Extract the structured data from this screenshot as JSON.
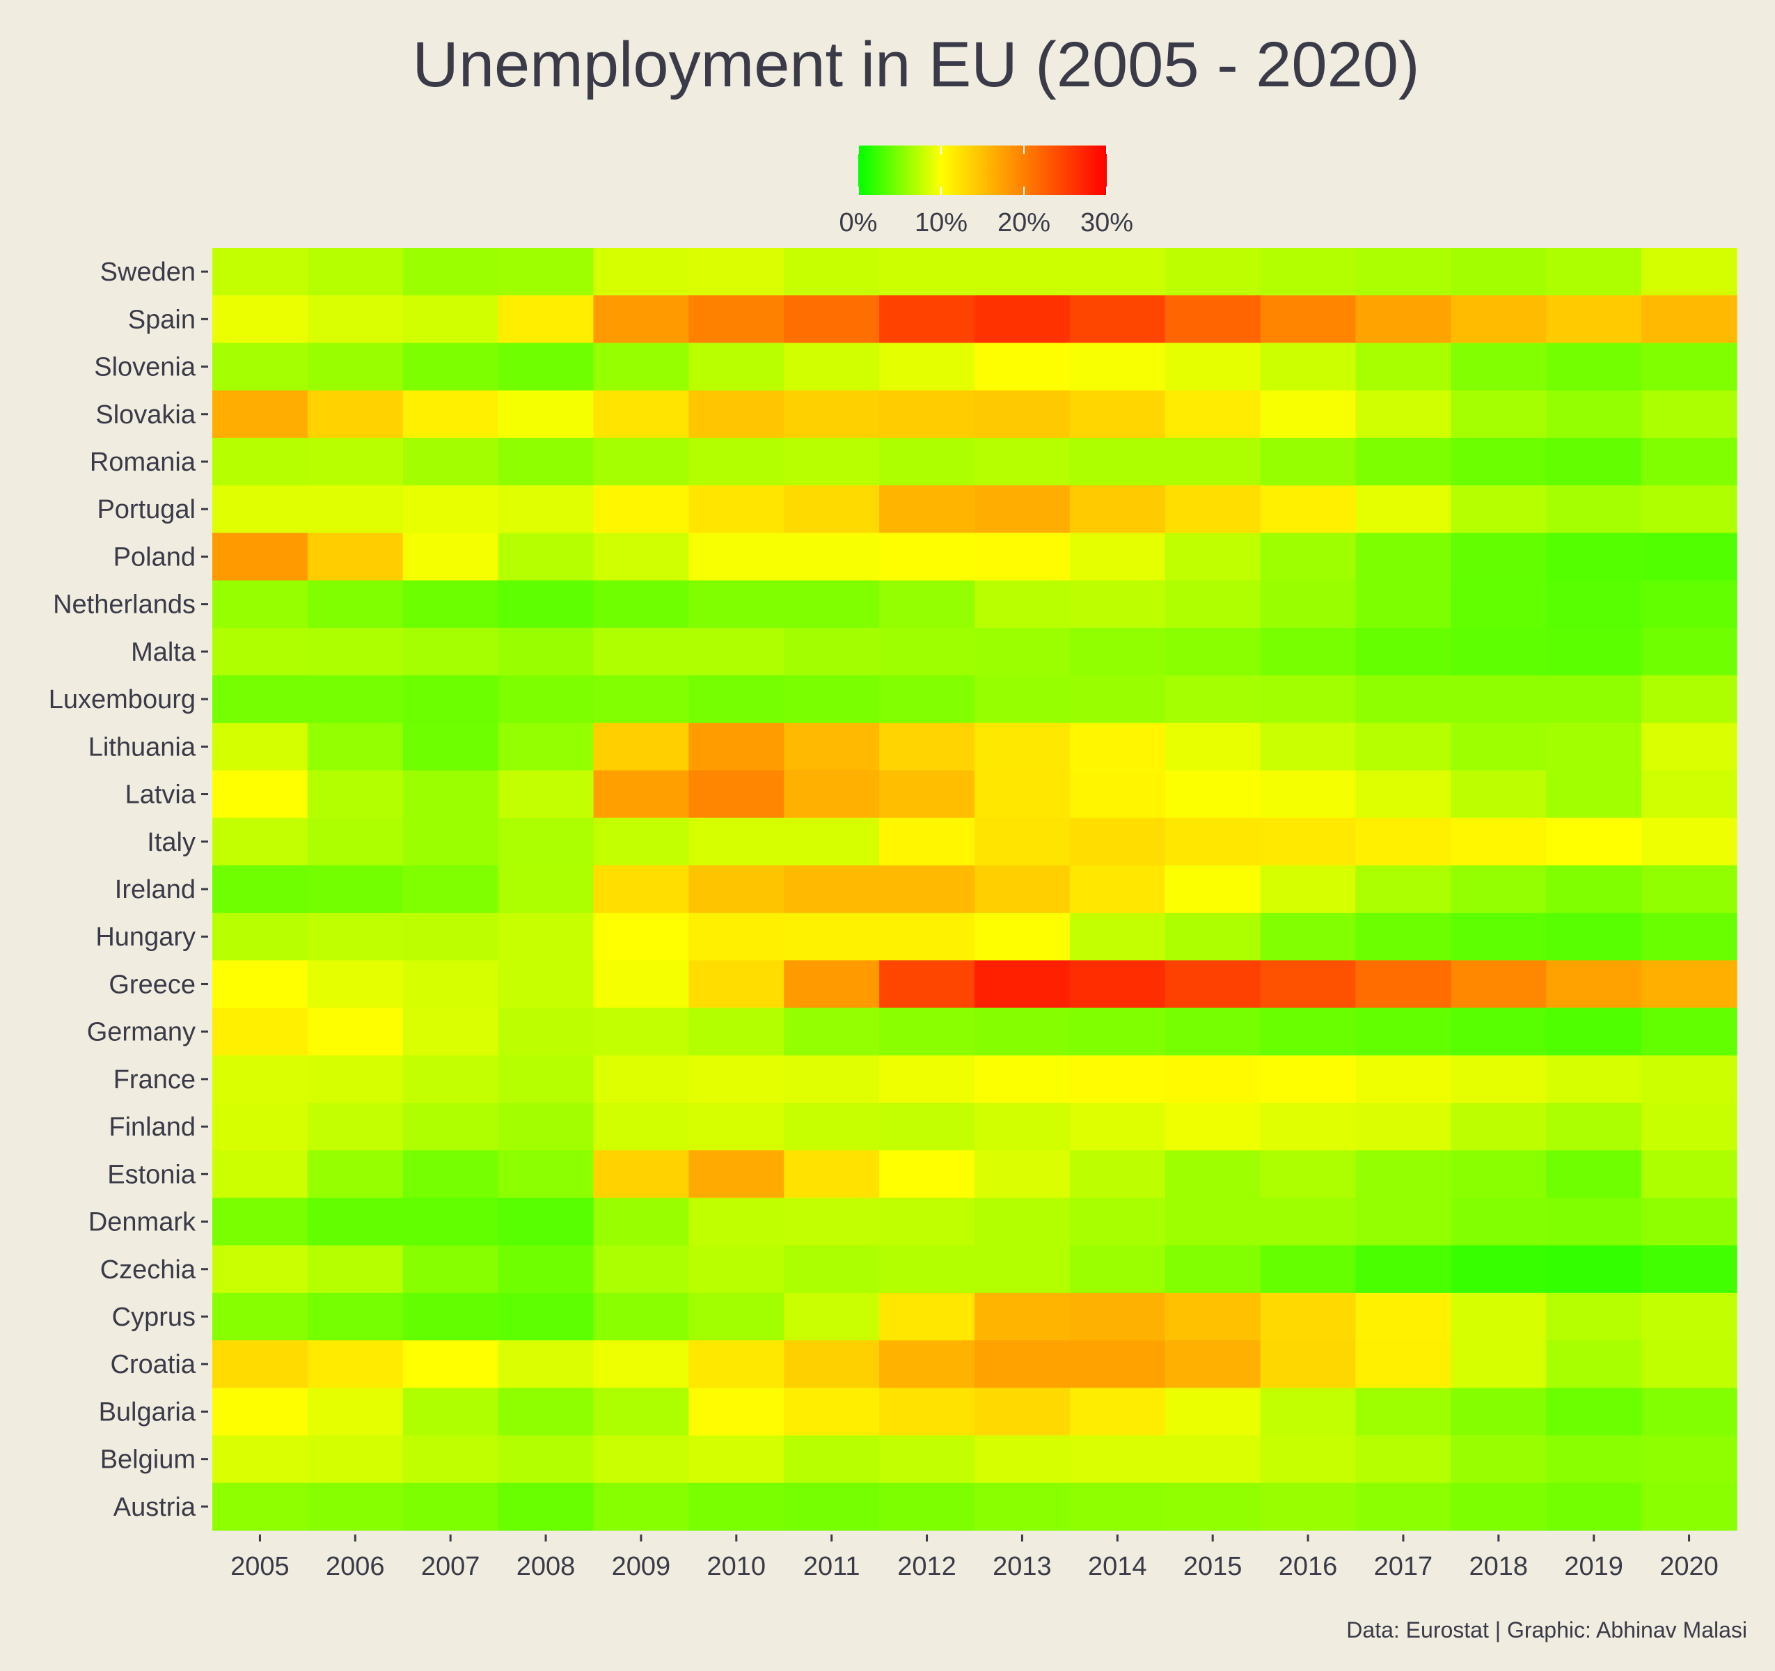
{
  "chart_data": {
    "type": "heatmap",
    "title": "Unemployment in EU (2005 - 2020)",
    "caption": "Data: Eurostat | Graphic: Abhinav Malasi",
    "x": [
      "2005",
      "2006",
      "2007",
      "2008",
      "2009",
      "2010",
      "2011",
      "2012",
      "2013",
      "2014",
      "2015",
      "2016",
      "2017",
      "2018",
      "2019",
      "2020"
    ],
    "y": [
      "Sweden",
      "Spain",
      "Slovenia",
      "Slovakia",
      "Romania",
      "Portugal",
      "Poland",
      "Netherlands",
      "Malta",
      "Luxembourg",
      "Lithuania",
      "Latvia",
      "Italy",
      "Ireland",
      "Hungary",
      "Greece",
      "Germany",
      "France",
      "Finland",
      "Estonia",
      "Denmark",
      "Czechia",
      "Cyprus",
      "Croatia",
      "Bulgaria",
      "Belgium",
      "Austria"
    ],
    "values": [
      [
        7.7,
        7.1,
        6.1,
        6.2,
        8.4,
        8.6,
        7.8,
        8.0,
        8.0,
        8.0,
        7.4,
        7.0,
        6.7,
        6.4,
        6.8,
        8.3
      ],
      [
        9.2,
        8.5,
        8.2,
        11.3,
        17.9,
        19.9,
        21.4,
        24.8,
        26.1,
        24.5,
        22.1,
        19.6,
        17.2,
        15.3,
        14.1,
        15.5
      ],
      [
        6.5,
        6.0,
        4.9,
        4.4,
        5.9,
        7.3,
        8.2,
        8.9,
        10.1,
        9.7,
        9.0,
        8.0,
        6.6,
        5.1,
        4.5,
        5.0
      ],
      [
        16.4,
        13.5,
        11.2,
        9.6,
        12.1,
        14.5,
        13.7,
        14.0,
        14.2,
        13.2,
        11.5,
        9.7,
        8.1,
        6.5,
        5.8,
        6.7
      ],
      [
        7.1,
        7.2,
        6.4,
        5.6,
        6.5,
        7.0,
        7.2,
        6.8,
        7.1,
        6.8,
        6.8,
        5.9,
        4.9,
        4.2,
        3.9,
        5.0
      ],
      [
        8.8,
        8.8,
        9.1,
        8.8,
        10.7,
        12.0,
        12.9,
        15.8,
        16.4,
        14.1,
        12.6,
        11.2,
        9.0,
        7.1,
        6.5,
        6.9
      ],
      [
        17.9,
        13.9,
        9.6,
        7.1,
        8.1,
        9.7,
        9.7,
        10.1,
        10.3,
        9.0,
        7.5,
        6.2,
        4.9,
        3.9,
        3.3,
        3.2
      ],
      [
        5.9,
        5.0,
        4.2,
        3.7,
        4.4,
        5.0,
        5.0,
        5.8,
        7.3,
        7.4,
        6.9,
        6.0,
        4.9,
        3.8,
        3.4,
        3.8
      ],
      [
        6.9,
        6.8,
        6.5,
        6.0,
        6.9,
        6.9,
        6.4,
        6.2,
        6.1,
        5.7,
        5.4,
        4.7,
        4.0,
        3.7,
        3.6,
        4.4
      ],
      [
        4.6,
        4.6,
        4.2,
        4.9,
        5.1,
        4.6,
        4.8,
        5.1,
        5.9,
        6.0,
        6.5,
        6.3,
        5.6,
        5.6,
        5.6,
        6.8
      ],
      [
        8.3,
        5.8,
        4.3,
        5.8,
        13.8,
        17.8,
        15.4,
        13.4,
        11.8,
        10.7,
        9.1,
        7.9,
        7.1,
        6.2,
        6.3,
        8.5
      ],
      [
        10.0,
        7.0,
        6.1,
        7.7,
        17.5,
        19.5,
        16.2,
        15.0,
        11.9,
        10.8,
        9.9,
        9.6,
        8.7,
        7.4,
        6.3,
        8.1
      ],
      [
        7.7,
        6.8,
        6.1,
        6.7,
        7.7,
        8.4,
        8.4,
        10.7,
        12.1,
        12.7,
        11.9,
        11.7,
        11.2,
        10.6,
        10.0,
        9.3
      ],
      [
        4.4,
        4.5,
        5.0,
        6.8,
        12.6,
        14.6,
        15.4,
        15.5,
        13.8,
        11.9,
        9.9,
        8.4,
        6.7,
        5.8,
        5.0,
        5.7
      ],
      [
        7.2,
        7.5,
        7.4,
        7.8,
        10.0,
        11.2,
        11.0,
        11.0,
        10.1,
        7.7,
        6.8,
        5.1,
        4.2,
        3.7,
        3.4,
        4.1
      ],
      [
        10.0,
        9.0,
        8.4,
        7.8,
        9.6,
        12.7,
        17.9,
        24.5,
        27.5,
        26.5,
        24.9,
        23.6,
        21.5,
        19.3,
        17.3,
        16.3
      ],
      [
        11.2,
        10.1,
        8.5,
        7.4,
        7.6,
        7.0,
        5.8,
        5.4,
        5.2,
        5.0,
        4.6,
        4.1,
        3.8,
        3.4,
        3.1,
        3.8
      ],
      [
        8.5,
        8.4,
        7.7,
        7.1,
        8.7,
        8.9,
        8.8,
        9.4,
        9.9,
        10.3,
        10.4,
        10.1,
        9.4,
        9.0,
        8.4,
        8.0
      ],
      [
        8.4,
        7.7,
        6.9,
        6.4,
        8.2,
        8.4,
        7.8,
        7.7,
        8.2,
        8.7,
        9.4,
        8.8,
        8.6,
        7.4,
        6.7,
        7.8
      ],
      [
        8.0,
        5.9,
        4.6,
        5.5,
        13.5,
        16.7,
        12.3,
        10.0,
        8.6,
        7.4,
        6.2,
        6.8,
        5.8,
        5.4,
        4.4,
        6.8
      ],
      [
        4.8,
        3.9,
        3.8,
        3.4,
        6.0,
        7.5,
        7.6,
        7.5,
        7.0,
        6.6,
        6.2,
        6.2,
        5.8,
        5.1,
        5.0,
        5.6
      ],
      [
        7.9,
        7.1,
        5.3,
        4.4,
        6.7,
        7.3,
        6.7,
        7.0,
        7.0,
        6.1,
        5.1,
        4.0,
        2.9,
        2.2,
        2.0,
        2.6
      ],
      [
        5.3,
        4.6,
        3.9,
        3.7,
        5.4,
        6.3,
        7.9,
        11.9,
        15.9,
        16.1,
        14.9,
        13.0,
        11.1,
        8.4,
        7.1,
        7.6
      ],
      [
        12.8,
        11.6,
        10.0,
        8.6,
        9.3,
        11.8,
        13.7,
        16.0,
        17.3,
        17.3,
        16.2,
        13.1,
        11.2,
        8.4,
        6.6,
        7.5
      ],
      [
        10.1,
        9.0,
        6.9,
        5.6,
        6.8,
        10.3,
        11.3,
        12.3,
        13.0,
        11.4,
        9.2,
        7.6,
        6.2,
        5.2,
        4.2,
        5.1
      ],
      [
        8.5,
        8.3,
        7.5,
        7.0,
        7.9,
        8.3,
        7.2,
        7.6,
        8.4,
        8.5,
        8.5,
        7.8,
        7.1,
        6.0,
        5.4,
        5.6
      ],
      [
        5.6,
        5.3,
        4.9,
        4.1,
        5.3,
        4.8,
        4.6,
        4.9,
        5.4,
        5.6,
        5.7,
        6.0,
        5.5,
        4.9,
        4.5,
        5.4
      ]
    ],
    "colorscale": {
      "min": 0,
      "max": 30,
      "stops": [
        "#00ff00",
        "#ffff00",
        "#ff0000"
      ],
      "ticks": [
        "0%",
        "10%",
        "20%",
        "30%"
      ],
      "tick_values": [
        0,
        10,
        20,
        30
      ]
    },
    "legend_position": "top-center"
  }
}
